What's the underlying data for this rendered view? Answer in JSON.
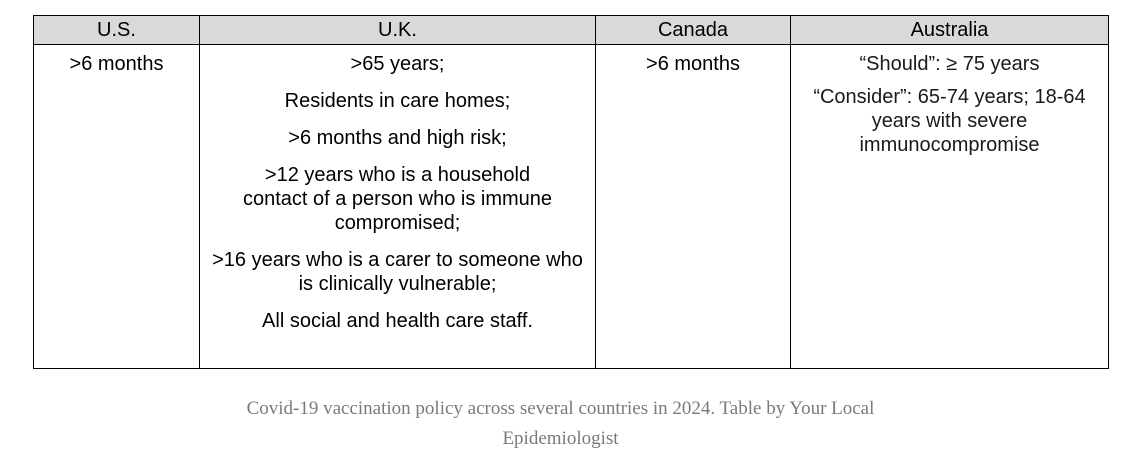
{
  "table": {
    "headers": [
      "U.S.",
      "U.K.",
      "Canada",
      "Australia"
    ],
    "us": ">6 months",
    "uk": [
      ">65 years;",
      "Residents in care homes;",
      ">6 months and high risk;",
      ">12 years who is a household contact of a person who is immune compromised;",
      ">16 years who is a carer to someone who is clinically vulnerable;",
      "All social and health care staff."
    ],
    "canada": ">6 months",
    "australia": [
      "“Should”: ≥ 75 years",
      "“Consider”: 65-74 years; 18-64 years with severe immunocompromise"
    ]
  },
  "caption": {
    "line1": "Covid-19 vaccination policy across several countries in 2024. Table by Your Local",
    "line2": "Epidemiologist"
  }
}
